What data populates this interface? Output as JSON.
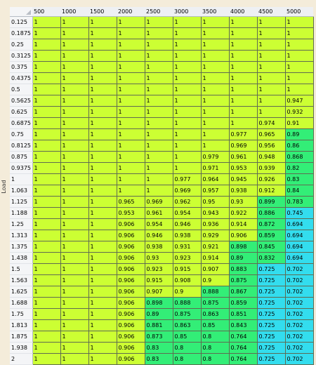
{
  "axis_label": "Load",
  "columns": [
    "500",
    "1000",
    "1500",
    "2000",
    "2500",
    "3000",
    "3500",
    "4000",
    "4500",
    "5000"
  ],
  "colors": {
    "high": "#ccff33",
    "mid": "#33ee77",
    "low": "#33ddee"
  },
  "rows": [
    {
      "label": "0.125",
      "values": [
        "1",
        "1",
        "1",
        "1",
        "1",
        "1",
        "1",
        "1",
        "1",
        "1"
      ]
    },
    {
      "label": "0.1875",
      "values": [
        "1",
        "1",
        "1",
        "1",
        "1",
        "1",
        "1",
        "1",
        "1",
        "1"
      ]
    },
    {
      "label": "0.25",
      "values": [
        "1",
        "1",
        "1",
        "1",
        "1",
        "1",
        "1",
        "1",
        "1",
        "1"
      ]
    },
    {
      "label": "0.3125",
      "values": [
        "1",
        "1",
        "1",
        "1",
        "1",
        "1",
        "1",
        "1",
        "1",
        "1"
      ]
    },
    {
      "label": "0.375",
      "values": [
        "1",
        "1",
        "1",
        "1",
        "1",
        "1",
        "1",
        "1",
        "1",
        "1"
      ]
    },
    {
      "label": "0.4375",
      "values": [
        "1",
        "1",
        "1",
        "1",
        "1",
        "1",
        "1",
        "1",
        "1",
        "1"
      ]
    },
    {
      "label": "0.5",
      "values": [
        "1",
        "1",
        "1",
        "1",
        "1",
        "1",
        "1",
        "1",
        "1",
        "1"
      ]
    },
    {
      "label": "0.5625",
      "values": [
        "1",
        "1",
        "1",
        "1",
        "1",
        "1",
        "1",
        "1",
        "1",
        "0.947"
      ]
    },
    {
      "label": "0.625",
      "values": [
        "1",
        "1",
        "1",
        "1",
        "1",
        "1",
        "1",
        "1",
        "1",
        "0.932"
      ]
    },
    {
      "label": "0.6875",
      "values": [
        "1",
        "1",
        "1",
        "1",
        "1",
        "1",
        "1",
        "1",
        "0.974",
        "0.91"
      ]
    },
    {
      "label": "0.75",
      "values": [
        "1",
        "1",
        "1",
        "1",
        "1",
        "1",
        "1",
        "0.977",
        "0.965",
        "0.89"
      ]
    },
    {
      "label": "0.8125",
      "values": [
        "1",
        "1",
        "1",
        "1",
        "1",
        "1",
        "1",
        "0.969",
        "0.956",
        "0.86"
      ]
    },
    {
      "label": "0.875",
      "values": [
        "1",
        "1",
        "1",
        "1",
        "1",
        "1",
        "0.979",
        "0.961",
        "0.948",
        "0.868"
      ]
    },
    {
      "label": "0.9375",
      "values": [
        "1",
        "1",
        "1",
        "1",
        "1",
        "1",
        "0.971",
        "0.953",
        "0.939",
        "0.82"
      ]
    },
    {
      "label": "1",
      "values": [
        "1",
        "1",
        "1",
        "1",
        "1",
        "0.977",
        "0.964",
        "0.945",
        "0.926",
        "0.83"
      ]
    },
    {
      "label": "1.063",
      "values": [
        "1",
        "1",
        "1",
        "1",
        "1",
        "0.969",
        "0.957",
        "0.938",
        "0.912",
        "0.84"
      ]
    },
    {
      "label": "1.125",
      "values": [
        "1",
        "1",
        "1",
        "0.965",
        "0.969",
        "0.962",
        "0.95",
        "0.93",
        "0.899",
        "0.783"
      ]
    },
    {
      "label": "1.188",
      "values": [
        "1",
        "1",
        "1",
        "0.953",
        "0.961",
        "0.954",
        "0.943",
        "0.922",
        "0.886",
        "0.745"
      ]
    },
    {
      "label": "1.25",
      "values": [
        "1",
        "1",
        "1",
        "0.906",
        "0.954",
        "0.946",
        "0.936",
        "0.914",
        "0.872",
        "0.694"
      ]
    },
    {
      "label": "1.313",
      "values": [
        "1",
        "1",
        "1",
        "0.906",
        "0.946",
        "0.938",
        "0.929",
        "0.906",
        "0.859",
        "0.694"
      ]
    },
    {
      "label": "1.375",
      "values": [
        "1",
        "1",
        "1",
        "0.906",
        "0.938",
        "0.931",
        "0.921",
        "0.898",
        "0.845",
        "0.694"
      ]
    },
    {
      "label": "1.438",
      "values": [
        "1",
        "1",
        "1",
        "0.906",
        "0.93",
        "0.923",
        "0.914",
        "0.89",
        "0.832",
        "0.694"
      ]
    },
    {
      "label": "1.5",
      "values": [
        "1",
        "1",
        "1",
        "0.906",
        "0.923",
        "0.915",
        "0.907",
        "0.883",
        "0.725",
        "0.702"
      ]
    },
    {
      "label": "1.563",
      "values": [
        "1",
        "1",
        "1",
        "0.906",
        "0.915",
        "0.908",
        "0.9",
        "0.875",
        "0.725",
        "0.702"
      ]
    },
    {
      "label": "1.625",
      "values": [
        "1",
        "1",
        "1",
        "0.906",
        "0.907",
        "0.9",
        "0.888",
        "0.867",
        "0.725",
        "0.702"
      ]
    },
    {
      "label": "1.688",
      "values": [
        "1",
        "1",
        "1",
        "0.906",
        "0.898",
        "0.888",
        "0.875",
        "0.859",
        "0.725",
        "0.702"
      ]
    },
    {
      "label": "1.75",
      "values": [
        "1",
        "1",
        "1",
        "0.906",
        "0.89",
        "0.875",
        "0.863",
        "0.851",
        "0.725",
        "0.702"
      ]
    },
    {
      "label": "1.813",
      "values": [
        "1",
        "1",
        "1",
        "0.906",
        "0.881",
        "0.863",
        "0.85",
        "0.843",
        "0.725",
        "0.702"
      ]
    },
    {
      "label": "1.875",
      "values": [
        "1",
        "1",
        "1",
        "0.906",
        "0.873",
        "0.85",
        "0.8",
        "0.764",
        "0.725",
        "0.702"
      ]
    },
    {
      "label": "1.938",
      "values": [
        "1",
        "1",
        "1",
        "0.906",
        "0.83",
        "0.8",
        "0.8",
        "0.764",
        "0.725",
        "0.702"
      ]
    },
    {
      "label": "2",
      "values": [
        "1",
        "1",
        "1",
        "0.906",
        "0.83",
        "0.8",
        "0.8",
        "0.764",
        "0.725",
        "0.702"
      ]
    }
  ]
}
